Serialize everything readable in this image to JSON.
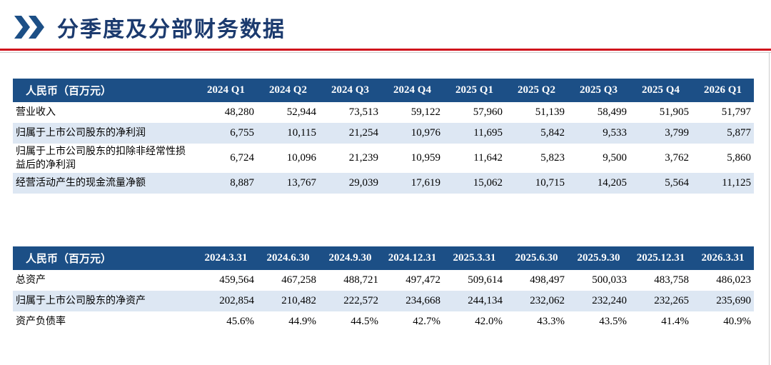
{
  "header": {
    "title": "分季度及分部财务数据"
  },
  "tables": [
    {
      "columns": [
        "人民币（百万元）",
        "2024 Q1",
        "2024 Q2",
        "2024 Q3",
        "2024 Q4",
        "2025 Q1",
        "2025 Q2",
        "2025 Q3",
        "2025 Q4",
        "2026 Q1"
      ],
      "rows": [
        [
          "营业收入",
          "48,280",
          "52,944",
          "73,513",
          "59,122",
          "57,960",
          "51,139",
          "58,499",
          "51,905",
          "51,797"
        ],
        [
          "归属于上市公司股东的净利润",
          "6,755",
          "10,115",
          "21,254",
          "10,976",
          "11,695",
          "5,842",
          "9,533",
          "3,799",
          "5,877"
        ],
        [
          "归属于上市公司股东的扣除非经常性损益后的净利润",
          "6,724",
          "10,096",
          "21,239",
          "10,959",
          "11,642",
          "5,823",
          "9,500",
          "3,762",
          "5,860"
        ],
        [
          "经营活动产生的现金流量净额",
          "8,887",
          "13,767",
          "29,039",
          "17,619",
          "15,062",
          "10,715",
          "14,205",
          "5,564",
          "11,125"
        ]
      ]
    },
    {
      "columns": [
        "人民币（百万元）",
        "2024.3.31",
        "2024.6.30",
        "2024.9.30",
        "2024.12.31",
        "2025.3.31",
        "2025.6.30",
        "2025.9.30",
        "2025.12.31",
        "2026.3.31"
      ],
      "rows": [
        [
          "总资产",
          "459,564",
          "467,258",
          "488,721",
          "497,472",
          "509,614",
          "498,497",
          "500,033",
          "483,758",
          "486,023"
        ],
        [
          "归属于上市公司股东的净资产",
          "202,854",
          "210,482",
          "222,572",
          "234,668",
          "244,134",
          "232,062",
          "232,240",
          "232,265",
          "235,690"
        ],
        [
          "资产负债率",
          "45.6%",
          "44.9%",
          "44.5%",
          "42.7%",
          "42.0%",
          "43.3%",
          "43.5%",
          "41.4%",
          "40.9%"
        ]
      ]
    }
  ]
}
